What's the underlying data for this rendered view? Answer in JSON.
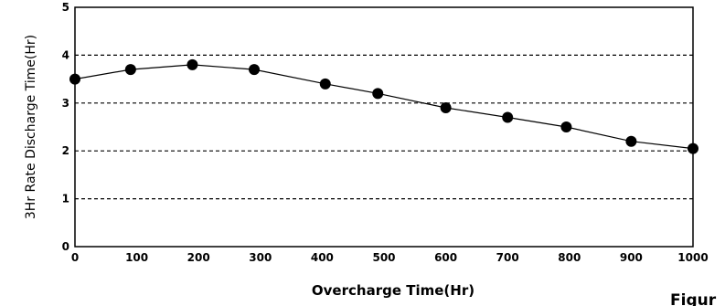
{
  "chart_data": {
    "type": "line",
    "xlabel": "Overcharge Time(Hr)",
    "ylabel": "3Hr Rate Discharge Time(Hr)",
    "xlim": [
      0,
      1000
    ],
    "ylim": [
      0,
      5
    ],
    "x_ticks": [
      "0",
      "100",
      "200",
      "300",
      "400",
      "500",
      "600",
      "700",
      "800",
      "900",
      "1000"
    ],
    "y_ticks": [
      "0",
      "1",
      "2",
      "3",
      "4",
      "5"
    ],
    "grid": "horizontal dashed at 1, 2, 3, 4",
    "series": [
      {
        "x": [
          0,
          90,
          190,
          290,
          405,
          490,
          600,
          700,
          795,
          900,
          1000
        ],
        "y": [
          3.5,
          3.7,
          3.8,
          3.7,
          3.4,
          3.2,
          2.9,
          2.7,
          2.5,
          2.2,
          2.05
        ]
      }
    ],
    "caption": "Figur",
    "colors": {
      "line": "#000000",
      "marker": "#000000",
      "grid": "#000000"
    }
  }
}
